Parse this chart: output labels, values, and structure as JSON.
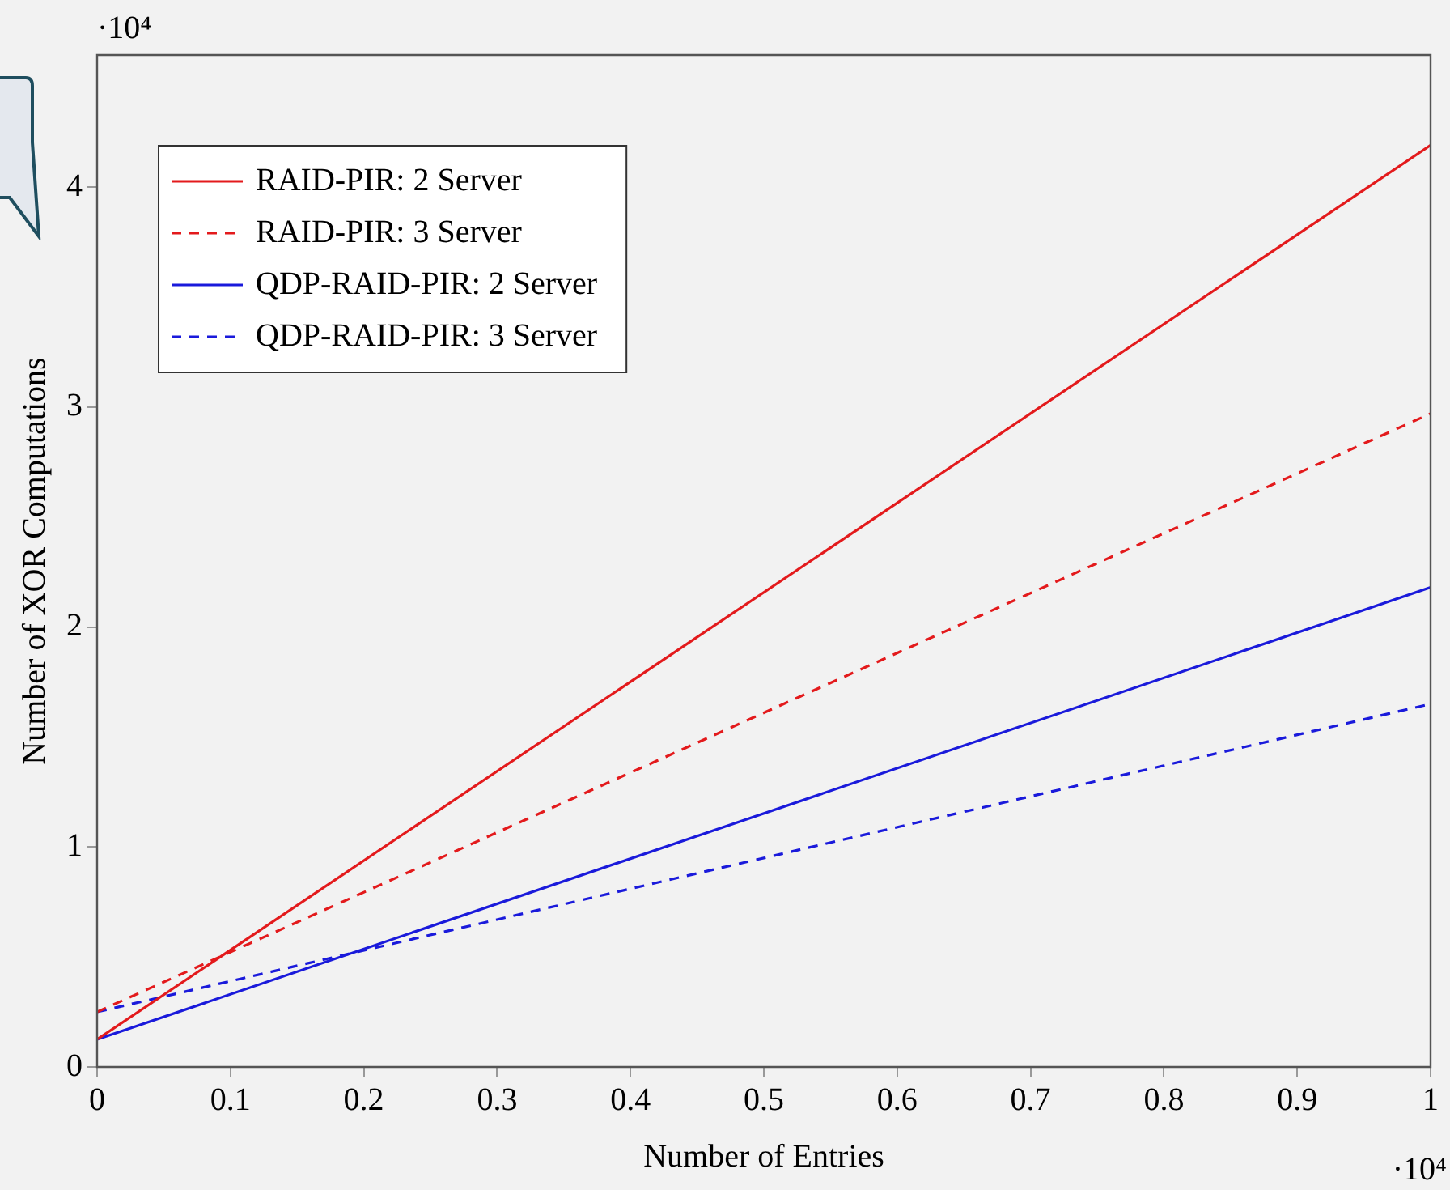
{
  "chart_data": {
    "type": "line",
    "xlabel": "Number of Entries",
    "ylabel": "Number of XOR Computations",
    "x": [
      0,
      1
    ],
    "series": [
      {
        "name": "RAID-PIR: 2 Server",
        "color": "#e31a1c",
        "values": [
          0.125,
          4.19
        ],
        "line_style": "solid"
      },
      {
        "name": "RAID-PIR: 3 Server",
        "color": "#e31a1c",
        "values": [
          0.25,
          2.97
        ],
        "line_style": "dashed"
      },
      {
        "name": "QDP-RAID-PIR: 2 Server",
        "color": "#1a1adb",
        "values": [
          0.125,
          2.18
        ],
        "line_style": "solid"
      },
      {
        "name": "QDP-RAID-PIR: 3 Server",
        "color": "#1a1adb",
        "values": [
          0.25,
          1.65
        ],
        "line_style": "dashed"
      }
    ],
    "xlim": [
      0,
      1
    ],
    "xticks": [
      0,
      0.1,
      0.2,
      0.3,
      0.4,
      0.5,
      0.6,
      0.7,
      0.8,
      0.9,
      1
    ],
    "ylim": [
      0,
      4.6
    ],
    "yticks": [
      0,
      1,
      2,
      3,
      4
    ],
    "annotations": [
      "·10⁴",
      "·10⁴"
    ],
    "grid": false,
    "legend": "top left",
    "marker": "none"
  }
}
